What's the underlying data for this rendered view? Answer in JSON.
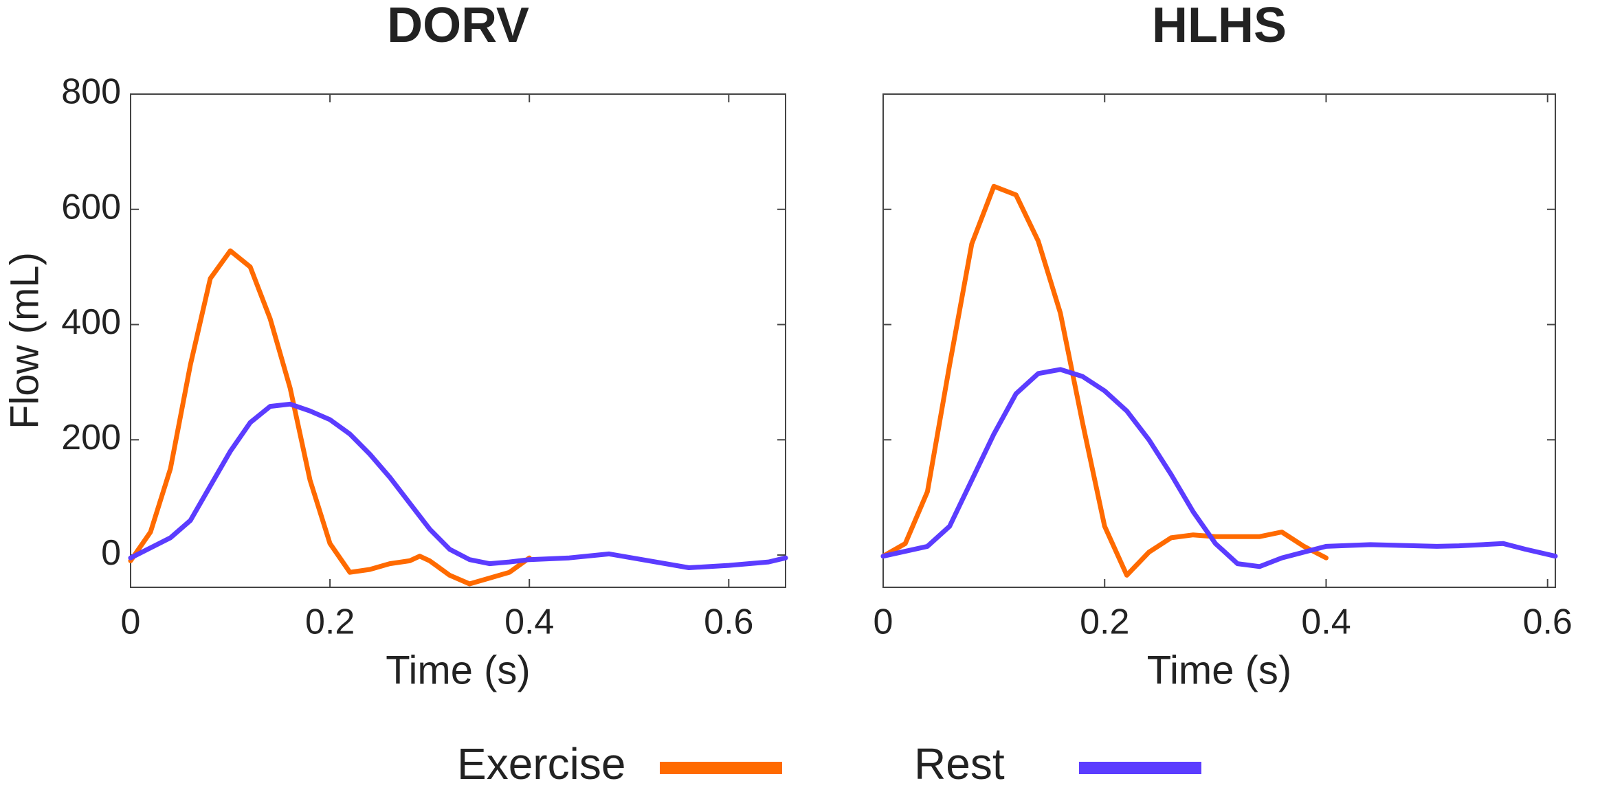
{
  "chart_data": [
    {
      "type": "line",
      "title": "DORV",
      "x_label": "Time (s)",
      "y_label": "Flow (mL)",
      "xlim": [
        0,
        0.657
      ],
      "ylim": [
        -56,
        800
      ],
      "xticks": [
        0,
        0.2,
        0.4,
        0.6
      ],
      "yticks": [
        0,
        200,
        400,
        600,
        800
      ],
      "show_ytick_labels": true,
      "series": [
        {
          "name": "Exercise",
          "color": "#ff6a00",
          "x": [
            0,
            0.02,
            0.04,
            0.06,
            0.08,
            0.1,
            0.12,
            0.14,
            0.16,
            0.18,
            0.2,
            0.22,
            0.24,
            0.26,
            0.28,
            0.29,
            0.3,
            0.32,
            0.34,
            0.36,
            0.38,
            0.4
          ],
          "values": [
            -10,
            40,
            150,
            330,
            480,
            528,
            500,
            410,
            290,
            130,
            20,
            -30,
            -25,
            -15,
            -10,
            -2,
            -10,
            -35,
            -50,
            -40,
            -30,
            -5
          ]
        },
        {
          "name": "Rest",
          "color": "#5b3cff",
          "x": [
            0,
            0.04,
            0.06,
            0.08,
            0.1,
            0.12,
            0.14,
            0.16,
            0.18,
            0.2,
            0.22,
            0.24,
            0.26,
            0.28,
            0.3,
            0.32,
            0.34,
            0.36,
            0.38,
            0.4,
            0.44,
            0.48,
            0.52,
            0.56,
            0.6,
            0.64,
            0.657
          ],
          "values": [
            -5,
            30,
            60,
            120,
            180,
            230,
            258,
            262,
            250,
            235,
            210,
            175,
            135,
            90,
            45,
            10,
            -8,
            -15,
            -12,
            -8,
            -5,
            2,
            -10,
            -22,
            -18,
            -12,
            -5
          ]
        }
      ]
    },
    {
      "type": "line",
      "title": "HLHS",
      "x_label": "Time (s)",
      "xlim": [
        0,
        0.607
      ],
      "ylim": [
        -56,
        800
      ],
      "xticks": [
        0,
        0.2,
        0.4,
        0.6
      ],
      "yticks": [
        0,
        200,
        400,
        600,
        800
      ],
      "show_ytick_labels": false,
      "series": [
        {
          "name": "Exercise",
          "color": "#ff6a00",
          "x": [
            0,
            0.02,
            0.04,
            0.06,
            0.08,
            0.1,
            0.12,
            0.14,
            0.16,
            0.18,
            0.2,
            0.22,
            0.24,
            0.26,
            0.28,
            0.3,
            0.34,
            0.36,
            0.38,
            0.4
          ],
          "values": [
            -2,
            20,
            110,
            330,
            540,
            640,
            625,
            545,
            420,
            230,
            50,
            -35,
            5,
            30,
            35,
            32,
            32,
            40,
            15,
            -5
          ]
        },
        {
          "name": "Rest",
          "color": "#5b3cff",
          "x": [
            0,
            0.04,
            0.06,
            0.08,
            0.1,
            0.12,
            0.14,
            0.16,
            0.18,
            0.2,
            0.22,
            0.24,
            0.26,
            0.28,
            0.3,
            0.32,
            0.34,
            0.36,
            0.4,
            0.44,
            0.5,
            0.52,
            0.56,
            0.58,
            0.607
          ],
          "values": [
            -2,
            15,
            50,
            130,
            210,
            280,
            315,
            322,
            310,
            285,
            250,
            200,
            140,
            75,
            20,
            -15,
            -20,
            -5,
            15,
            18,
            15,
            16,
            20,
            10,
            -2
          ]
        }
      ]
    }
  ]
}
